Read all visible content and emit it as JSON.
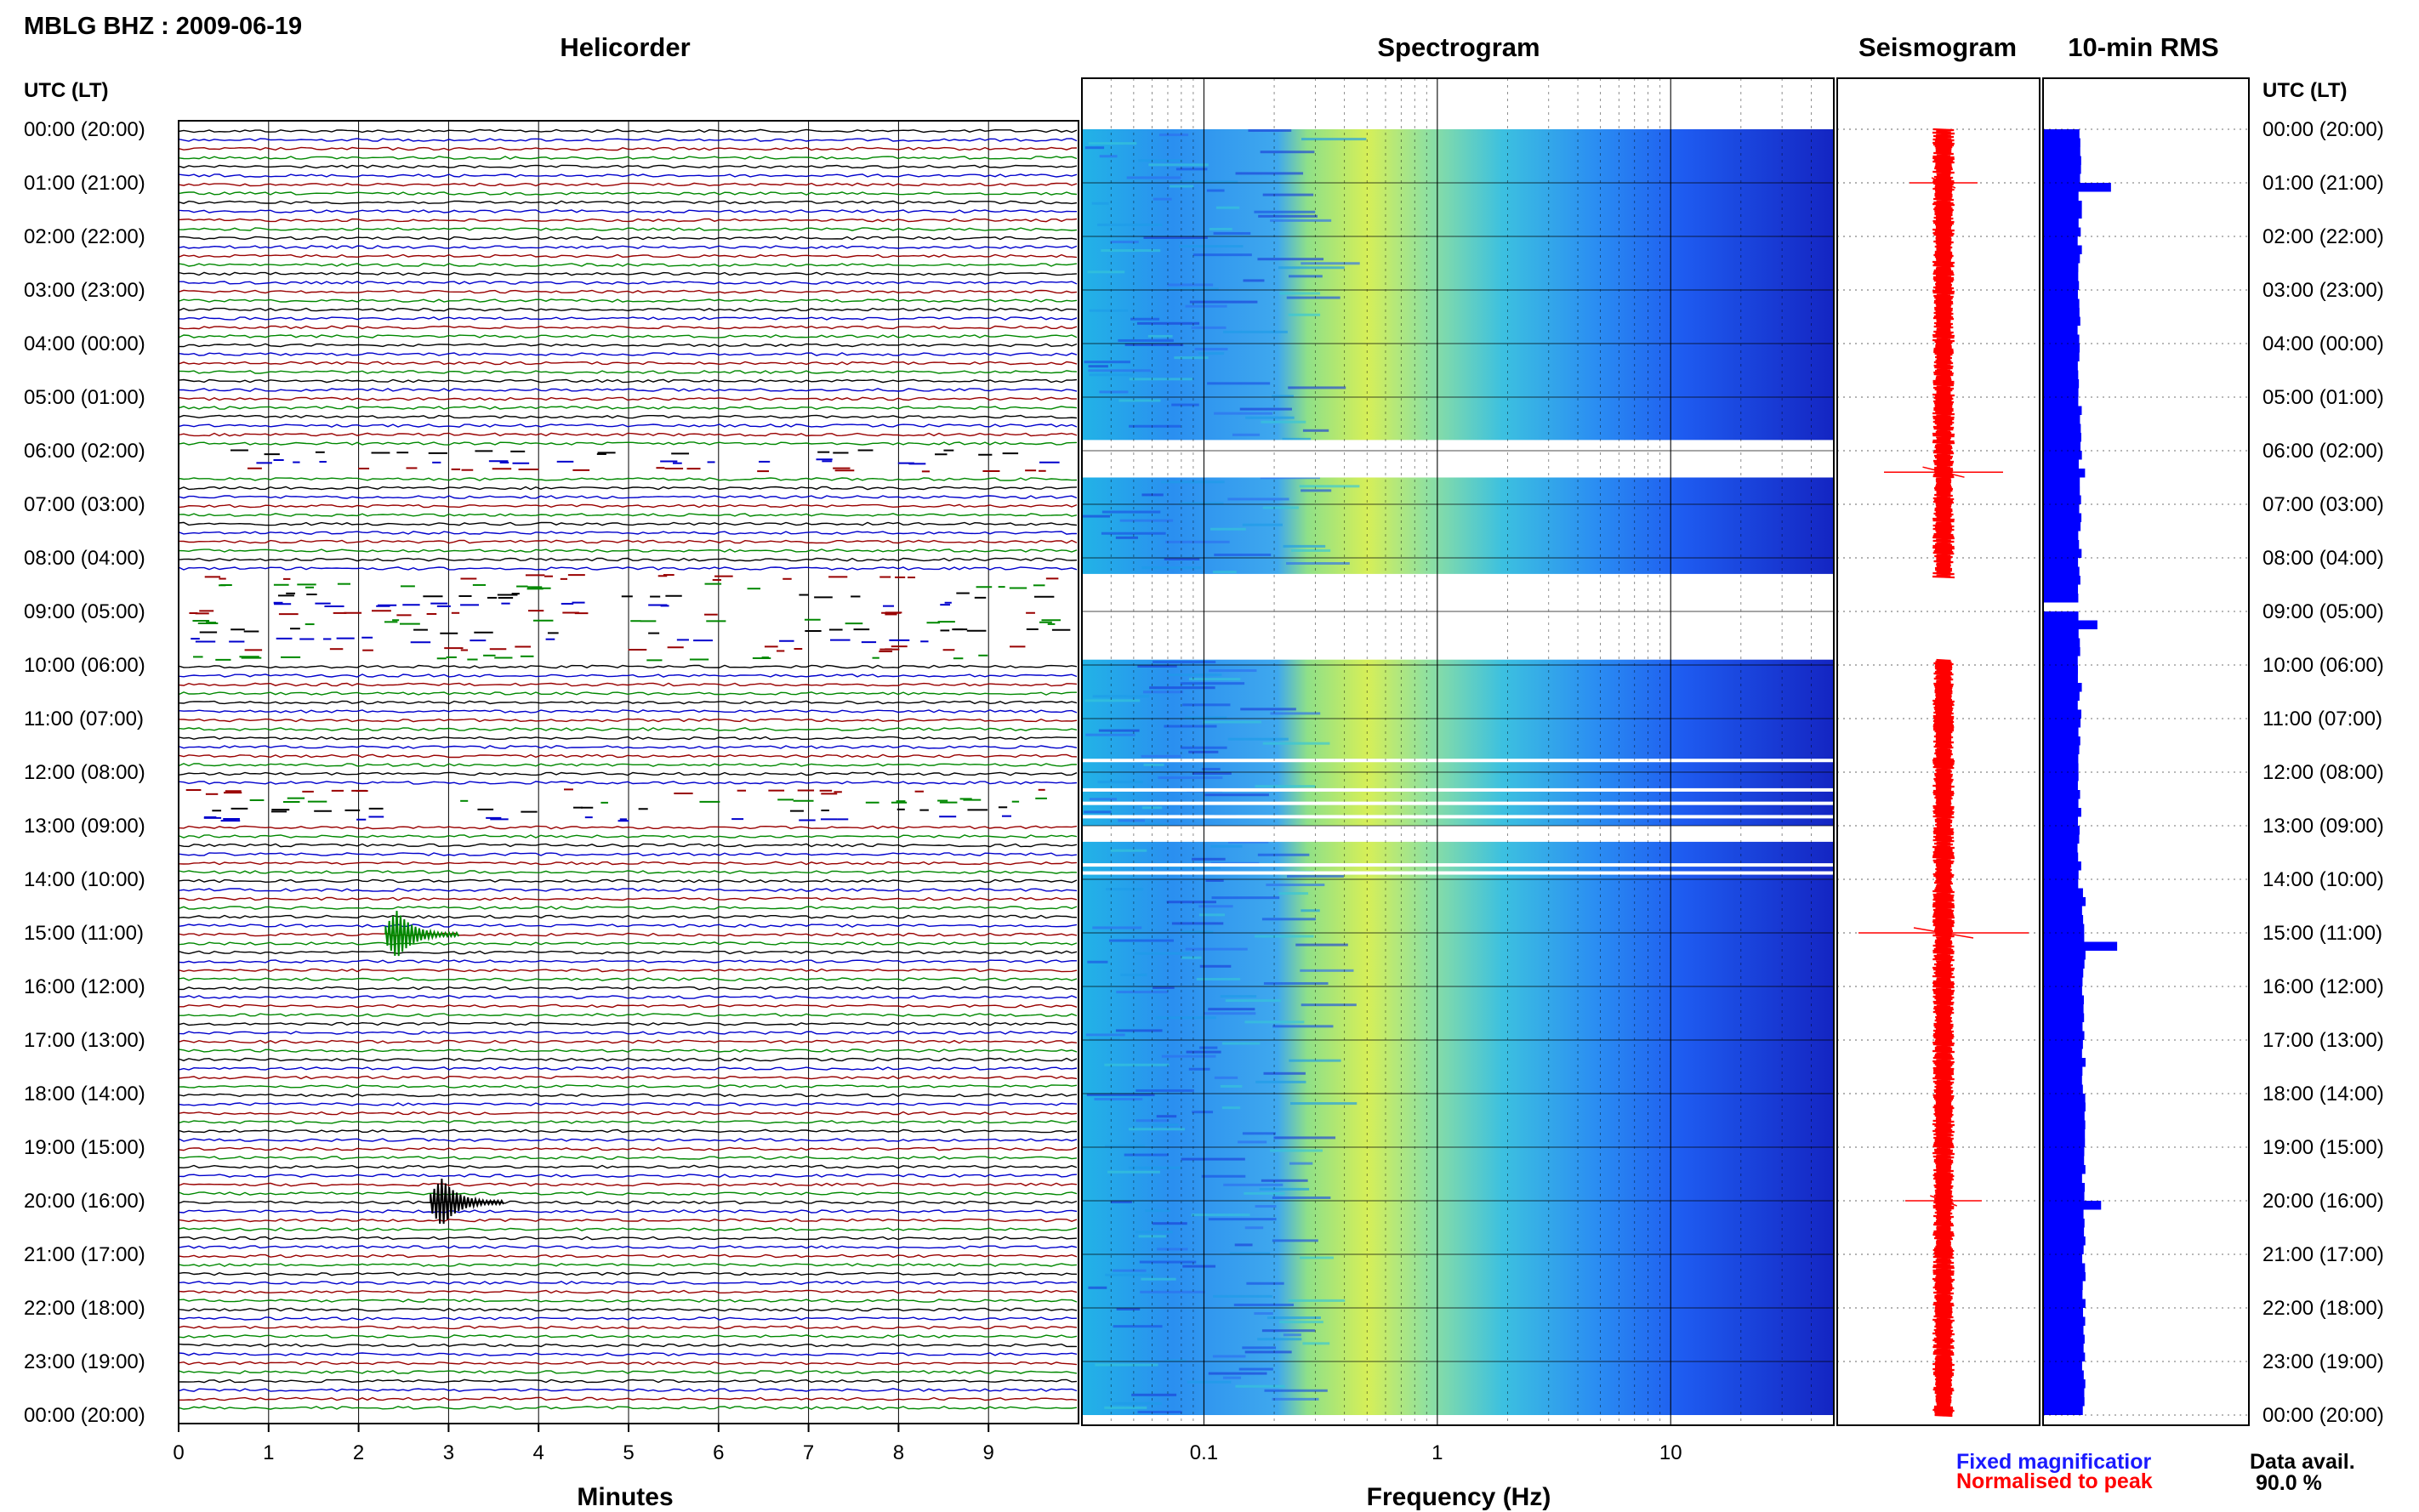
{
  "header": {
    "title": "MBLG BHZ : 2009-06-19"
  },
  "panels": {
    "helicorder": "Helicorder",
    "spectrogram": "Spectrogram",
    "seismogram": "Seismogram",
    "rms": "10-min RMS"
  },
  "axis": {
    "time_header": "UTC (LT)",
    "minutes_label": "Minutes",
    "frequency_label": "Frequency (Hz)",
    "minute_ticks": [
      "0",
      "1",
      "2",
      "3",
      "4",
      "5",
      "6",
      "7",
      "8",
      "9"
    ],
    "frequency_ticks": [
      "0.1",
      "1",
      "10"
    ]
  },
  "time_labels": [
    "00:00 (20:00)",
    "01:00 (21:00)",
    "02:00 (22:00)",
    "03:00 (23:00)",
    "04:00 (00:00)",
    "05:00 (01:00)",
    "06:00 (02:00)",
    "07:00 (03:00)",
    "08:00 (04:00)",
    "09:00 (05:00)",
    "10:00 (06:00)",
    "11:00 (07:00)",
    "12:00 (08:00)",
    "13:00 (09:00)",
    "14:00 (10:00)",
    "15:00 (11:00)",
    "16:00 (12:00)",
    "17:00 (13:00)",
    "18:00 (14:00)",
    "19:00 (15:00)",
    "20:00 (16:00)",
    "21:00 (17:00)",
    "22:00 (18:00)",
    "23:00 (19:00)",
    "00:00 (20:00)"
  ],
  "legend": {
    "fixed": "Fixed magnificatior",
    "normalised": "Normalised to peak",
    "fixed_color": "#1a1aff",
    "normalised_color": "#ff0000"
  },
  "availability": {
    "label": "Data avail.",
    "value": "90.0 %"
  },
  "chart_data": [
    {
      "type": "line",
      "panel": "Helicorder",
      "xlabel": "Minutes",
      "ylabel": "UTC (LT)",
      "xlim": [
        0,
        10
      ],
      "ylim_hours": [
        0,
        24
      ],
      "trace_colors": [
        "#000000",
        "#0000cc",
        "#990000",
        "#008800"
      ],
      "traces_per_hour": 6,
      "gaps_hours": [
        [
          6.0,
          6.5
        ],
        [
          8.2,
          9.9
        ],
        [
          12.3,
          12.9
        ],
        [
          13.2,
          13.3
        ]
      ],
      "events": [
        {
          "hour": 15.0,
          "minute": 2.3,
          "amplitude": "large",
          "color": "#008800"
        },
        {
          "hour": 20.0,
          "minute": 2.8,
          "amplitude": "large",
          "color": "#000000"
        }
      ]
    },
    {
      "type": "heatmap",
      "panel": "Spectrogram",
      "xlabel": "Frequency (Hz)",
      "xscale": "log",
      "xlim": [
        0.03,
        50
      ],
      "ylim_hours": [
        0,
        24
      ],
      "colormap": [
        "#1528c8",
        "#1f6bff",
        "#21b7e6",
        "#5fd8a0",
        "#d8f050"
      ],
      "gaps_hours": [
        [
          5.8,
          6.5
        ],
        [
          8.3,
          9.9
        ],
        [
          11.75,
          11.8
        ],
        [
          12.3,
          12.35
        ],
        [
          12.55,
          12.6
        ],
        [
          12.8,
          12.85
        ],
        [
          13.0,
          13.3
        ],
        [
          13.7,
          13.75
        ],
        [
          13.85,
          13.9
        ]
      ]
    },
    {
      "type": "line",
      "panel": "Seismogram",
      "color": "#ff0000",
      "ylim_hours": [
        0,
        24
      ],
      "gaps_hours": [
        [
          8.35,
          9.9
        ]
      ],
      "spikes": [
        {
          "hour": 1.0,
          "amplitude": 0.4
        },
        {
          "hour": 6.4,
          "amplitude": 0.7
        },
        {
          "hour": 15.0,
          "amplitude": 1.0
        },
        {
          "hour": 20.0,
          "amplitude": 0.45
        }
      ]
    },
    {
      "type": "bar",
      "panel": "10-min RMS",
      "orientation": "horizontal",
      "color": "#0000ff",
      "ylim_hours": [
        0,
        24
      ],
      "xlim": [
        0,
        10
      ],
      "bins_per_hour": 6,
      "baseline": 3.0,
      "gaps_hours": [
        [
          8.75,
          8.95
        ]
      ],
      "peaks": [
        {
          "hour": 0.95,
          "value": 5.5
        },
        {
          "hour": 6.35,
          "value": 3.4
        },
        {
          "hour": 9.1,
          "value": 4.4
        },
        {
          "hour": 15.2,
          "value": 6.0
        },
        {
          "hour": 20.05,
          "value": 4.7
        }
      ]
    }
  ]
}
